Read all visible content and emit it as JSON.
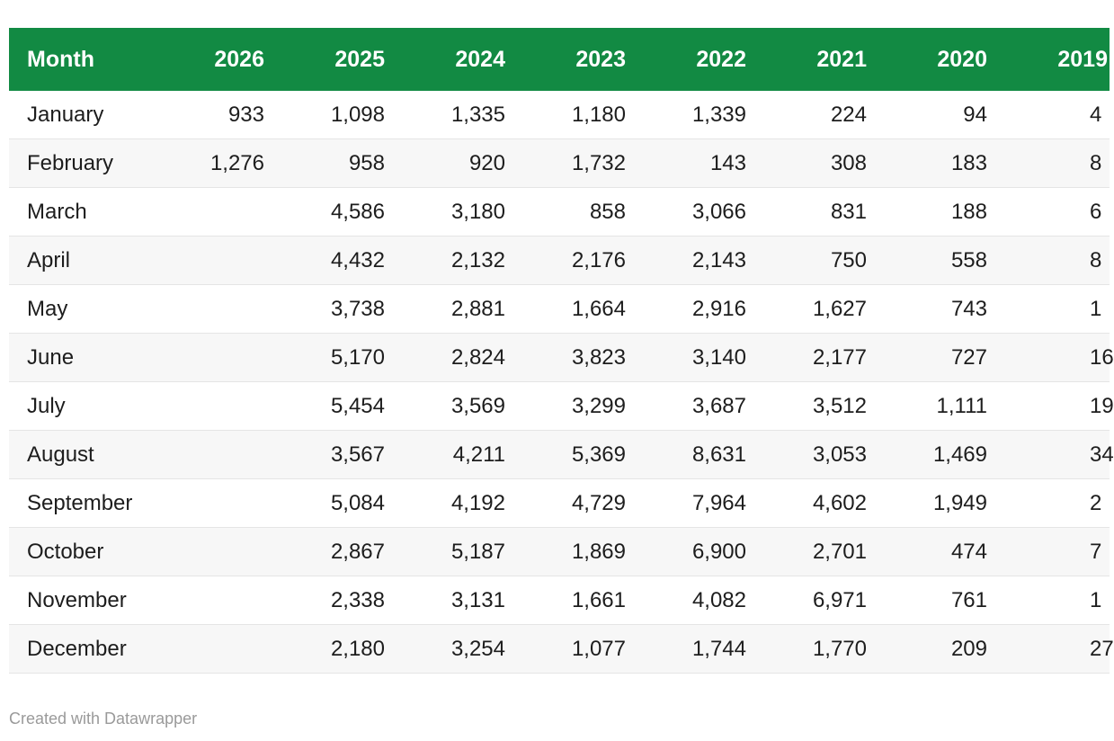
{
  "chart_data": {
    "type": "table",
    "title": "",
    "columns": [
      "Month",
      "2026",
      "2025",
      "2024",
      "2023",
      "2022",
      "2021",
      "2020",
      "2019"
    ],
    "clipped_last_column": true,
    "rows": [
      {
        "month": "January",
        "values": [
          "933",
          "1,098",
          "1,335",
          "1,180",
          "1,339",
          "224",
          "94"
        ],
        "clipped_2019_prefix": "4"
      },
      {
        "month": "February",
        "values": [
          "1,276",
          "958",
          "920",
          "1,732",
          "143",
          "308",
          "183"
        ],
        "clipped_2019_prefix": "8"
      },
      {
        "month": "March",
        "values": [
          "",
          "4,586",
          "3,180",
          "858",
          "3,066",
          "831",
          "188"
        ],
        "clipped_2019_prefix": "6"
      },
      {
        "month": "April",
        "values": [
          "",
          "4,432",
          "2,132",
          "2,176",
          "2,143",
          "750",
          "558"
        ],
        "clipped_2019_prefix": "8"
      },
      {
        "month": "May",
        "values": [
          "",
          "3,738",
          "2,881",
          "1,664",
          "2,916",
          "1,627",
          "743"
        ],
        "clipped_2019_prefix": "1"
      },
      {
        "month": "June",
        "values": [
          "",
          "5,170",
          "2,824",
          "3,823",
          "3,140",
          "2,177",
          "727"
        ],
        "clipped_2019_prefix": "16"
      },
      {
        "month": "July",
        "values": [
          "",
          "5,454",
          "3,569",
          "3,299",
          "3,687",
          "3,512",
          "1,111"
        ],
        "clipped_2019_prefix": "19"
      },
      {
        "month": "August",
        "values": [
          "",
          "3,567",
          "4,211",
          "5,369",
          "8,631",
          "3,053",
          "1,469"
        ],
        "clipped_2019_prefix": "34"
      },
      {
        "month": "September",
        "values": [
          "",
          "5,084",
          "4,192",
          "4,729",
          "7,964",
          "4,602",
          "1,949"
        ],
        "clipped_2019_prefix": "2"
      },
      {
        "month": "October",
        "values": [
          "",
          "2,867",
          "5,187",
          "1,869",
          "6,900",
          "2,701",
          "474"
        ],
        "clipped_2019_prefix": "7"
      },
      {
        "month": "November",
        "values": [
          "",
          "2,338",
          "3,131",
          "1,661",
          "4,082",
          "6,971",
          "761"
        ],
        "clipped_2019_prefix": "1"
      },
      {
        "month": "December",
        "values": [
          "",
          "2,180",
          "3,254",
          "1,077",
          "1,744",
          "1,770",
          "209"
        ],
        "clipped_2019_prefix": "27"
      }
    ]
  },
  "footer": {
    "attribution": "Created with Datawrapper"
  },
  "colors": {
    "header_bg": "#128a43",
    "header_text": "#ffffff",
    "row_alt_bg": "#f7f7f7",
    "row_border": "#e5e5e5",
    "body_text": "#1d1d1d",
    "attribution_text": "#9a9a9a"
  }
}
